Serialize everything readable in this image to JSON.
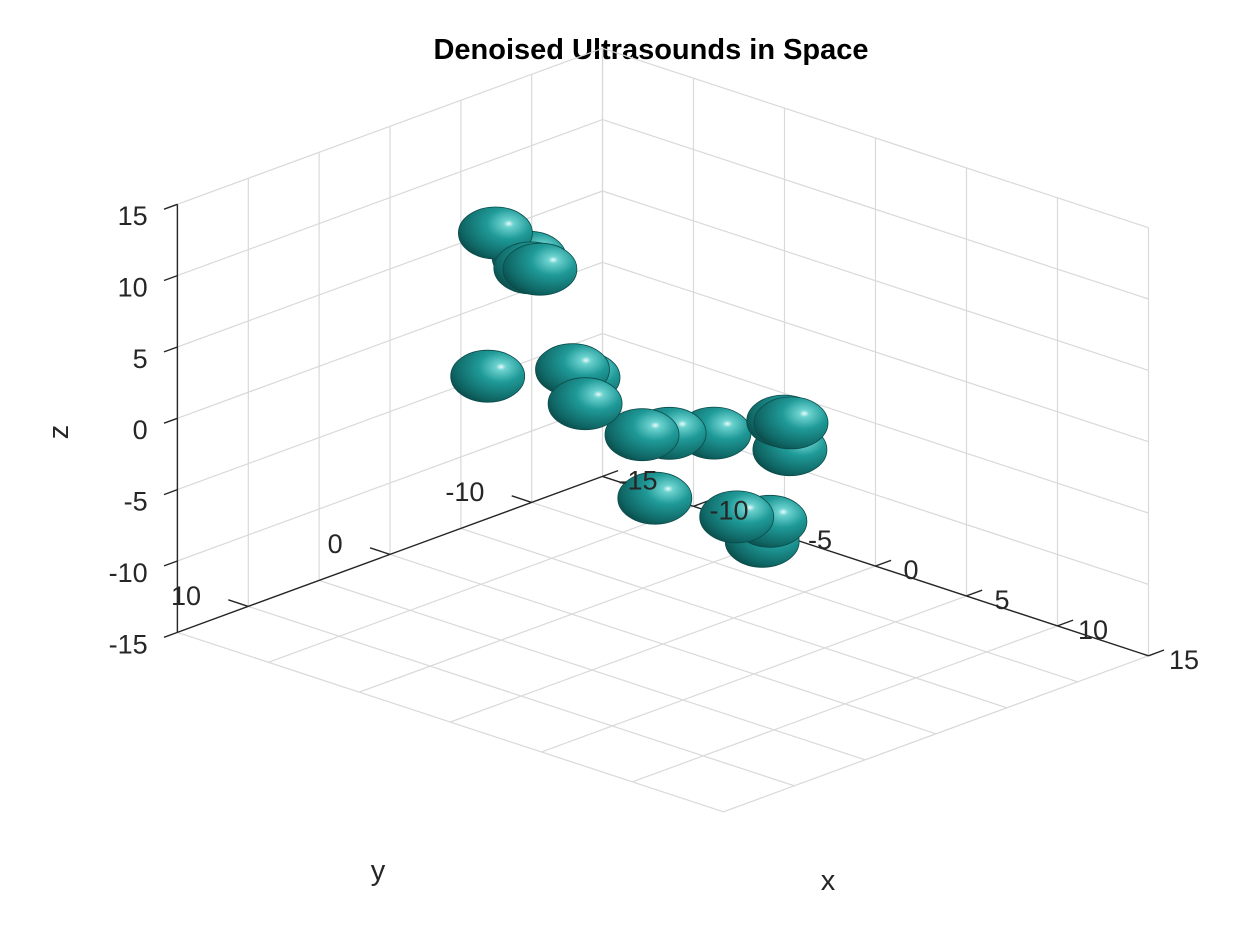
{
  "chart_data": {
    "type": "scatter",
    "title": "Denoised Ultrasounds in Space",
    "xlabel": "x",
    "ylabel": "y",
    "zlabel": "z",
    "xlim": [
      -15,
      15
    ],
    "ylim": [
      -15,
      15
    ],
    "zlim": [
      -15,
      15
    ],
    "grid": true,
    "x_ticks": [
      "-15",
      "-10",
      "-5",
      "0",
      "5",
      "10",
      "15"
    ],
    "y_ticks": [
      "-10",
      "0",
      "10"
    ],
    "z_ticks": [
      "15",
      "10",
      "5",
      "0",
      "-5",
      "-10",
      "-15"
    ],
    "marker_color": "#1a9d9d",
    "points": [
      {
        "x": -9.6,
        "y": -0.5,
        "z": 9.6
      },
      {
        "x": -5.8,
        "y": 2.0,
        "z": 10.4
      },
      {
        "x": -2.0,
        "y": 9.8,
        "z": 6.5
      },
      {
        "x": 3.0,
        "y": 9.5,
        "z": 8.4
      },
      {
        "x": 9.5,
        "y": 8.6,
        "z": 6.9
      },
      {
        "x": 9.9,
        "y": 4.2,
        "z": 6.3
      },
      {
        "x": 11.1,
        "y": 5.3,
        "z": 5.2
      },
      {
        "x": 8.9,
        "y": 2.4,
        "z": 5.1
      },
      {
        "x": -11.0,
        "y": -4.8,
        "z": 5.0
      },
      {
        "x": -11.2,
        "y": -5.7,
        "z": 4.5
      },
      {
        "x": -8.4,
        "y": -4.4,
        "z": -0.9
      },
      {
        "x": -5.2,
        "y": -5.2,
        "z": -4.4
      },
      {
        "x": 0.1,
        "y": -0.3,
        "z": -0.3
      },
      {
        "x": 2.9,
        "y": 4.3,
        "z": -2.0
      },
      {
        "x": 8.1,
        "y": 5.2,
        "z": -0.8
      },
      {
        "x": 9.3,
        "y": 4.4,
        "z": -0.9
      },
      {
        "x": 10.2,
        "y": 6.1,
        "z": -1.3
      },
      {
        "x": -10.2,
        "y": -7.6,
        "z": -5.2
      }
    ]
  }
}
